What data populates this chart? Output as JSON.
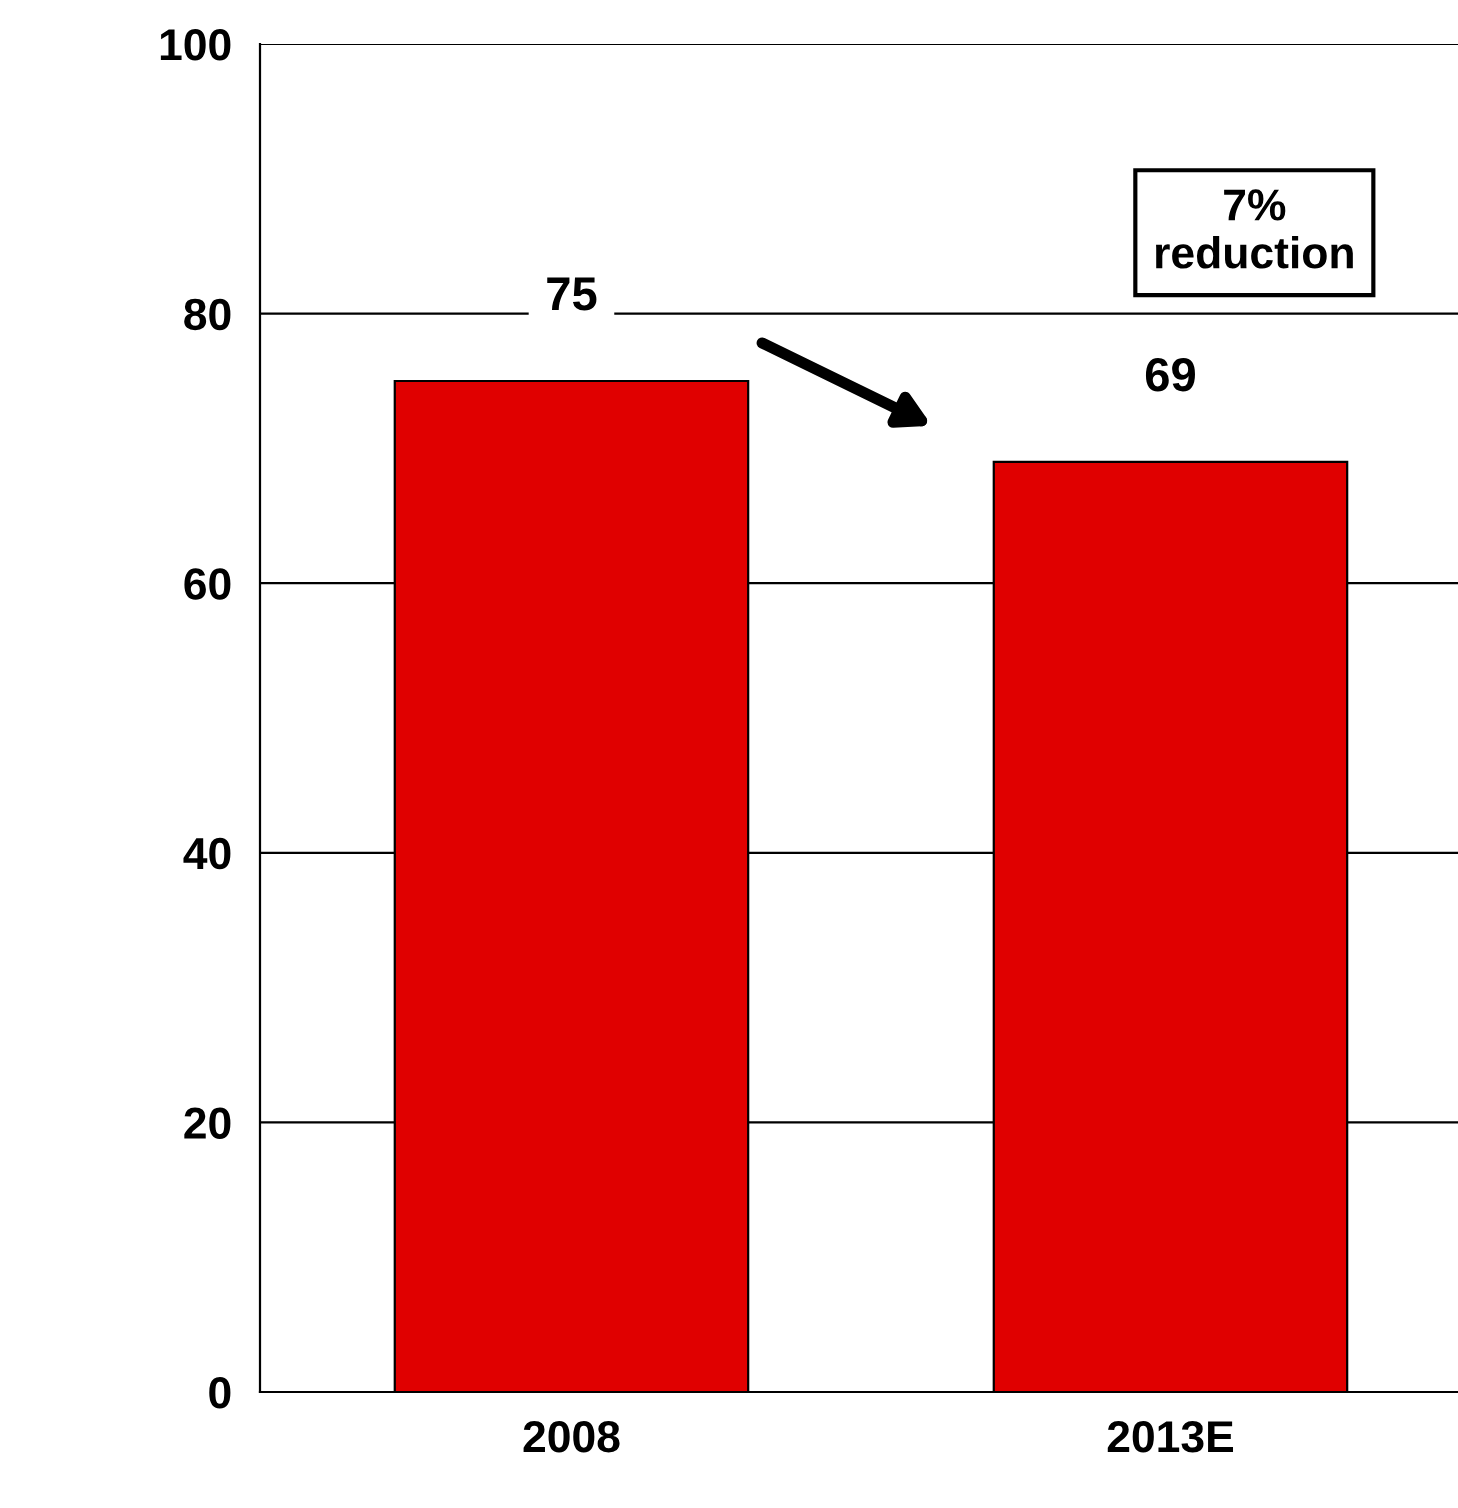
{
  "chart_data": {
    "type": "bar",
    "categories": [
      "2008",
      "2013E"
    ],
    "values": [
      75,
      69
    ],
    "color": "#e00000",
    "ylim": [
      0,
      100
    ],
    "yticks": [
      0,
      20,
      40,
      60,
      80,
      100
    ],
    "grid": "y",
    "data_labels": true,
    "annotations": [
      "7%\nreduction"
    ]
  }
}
